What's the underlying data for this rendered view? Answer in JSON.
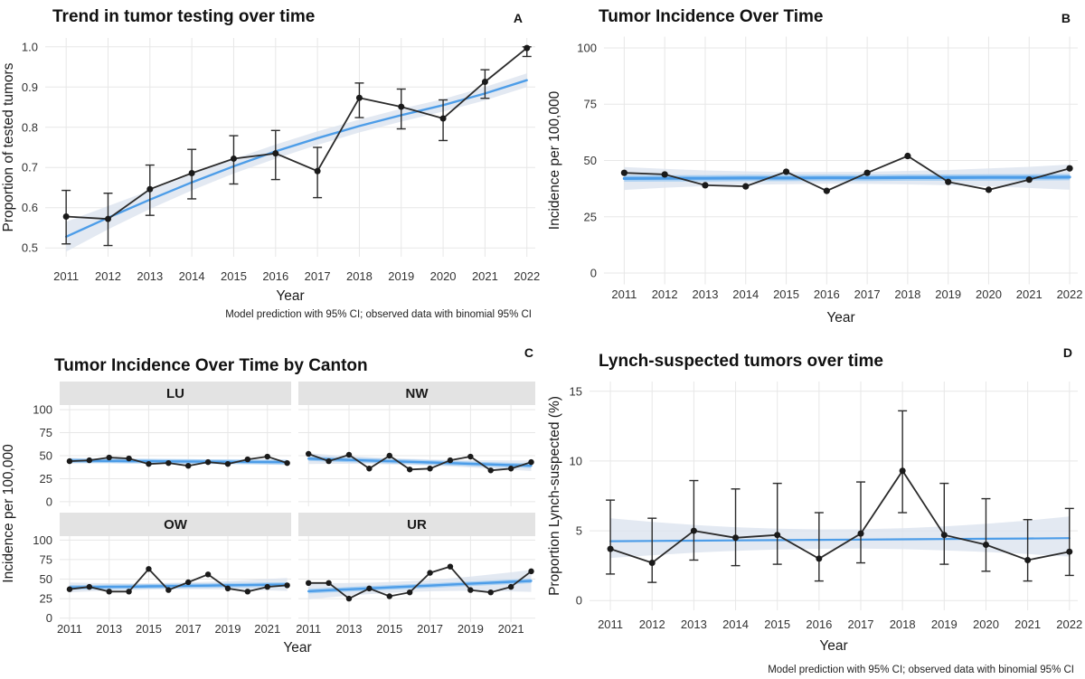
{
  "figure": {
    "colors": {
      "model_line": "#4D9DE8",
      "model_underlay": "#A9CFF2",
      "ribbon": "#DCE4EF",
      "observed": "#2B2B2B",
      "point": "#1A1A1A",
      "grid": "#E7E7E7",
      "strip_bg": "#E3E3E3",
      "text": "#1A1A1A",
      "tick_text": "#333333"
    }
  },
  "chart_data": [
    {
      "id": "A",
      "tag": "A",
      "type": "line",
      "title": "Trend in tumor testing over time",
      "xlabel": "Year",
      "ylabel": "Proportion of tested tumors",
      "caption": "Model prediction with 95% CI; observed data with binomial 95% CI",
      "legend_position": "none",
      "grid": true,
      "xlim": [
        2010.5,
        2022.2
      ],
      "ylim": [
        0.478,
        1.022
      ],
      "x": [
        2011,
        2012,
        2013,
        2014,
        2015,
        2016,
        2017,
        2018,
        2019,
        2020,
        2021,
        2022
      ],
      "x_ticks": [
        2011,
        2012,
        2013,
        2014,
        2015,
        2016,
        2017,
        2018,
        2019,
        2020,
        2021,
        2022
      ],
      "x_tick_labels": [
        "2011",
        "2012",
        "2013",
        "2014",
        "2015",
        "2016",
        "2017",
        "2018",
        "2019",
        "2020",
        "2021",
        "2022"
      ],
      "y_ticks": [
        0.5,
        0.6,
        0.7,
        0.8,
        0.9,
        1.0
      ],
      "y_tick_labels": [
        "0.5",
        "0.6",
        "0.7",
        "0.8",
        "0.9",
        "1.0"
      ],
      "observed": [
        0.578,
        0.572,
        0.646,
        0.686,
        0.722,
        0.735,
        0.691,
        0.873,
        0.851,
        0.822,
        0.913,
        0.997
      ],
      "obs_ci_low": [
        0.51,
        0.506,
        0.581,
        0.622,
        0.659,
        0.67,
        0.625,
        0.824,
        0.796,
        0.767,
        0.872,
        0.976
      ],
      "obs_ci_high": [
        0.643,
        0.636,
        0.706,
        0.745,
        0.779,
        0.792,
        0.75,
        0.91,
        0.895,
        0.868,
        0.943,
        1.0
      ],
      "model": [
        0.528,
        0.575,
        0.62,
        0.663,
        0.703,
        0.74,
        0.773,
        0.803,
        0.83,
        0.855,
        0.884,
        0.917
      ],
      "model_ci_low": [
        0.491,
        0.546,
        0.597,
        0.643,
        0.685,
        0.722,
        0.756,
        0.787,
        0.814,
        0.839,
        0.867,
        0.9
      ],
      "model_ci_high": [
        0.565,
        0.604,
        0.643,
        0.683,
        0.721,
        0.757,
        0.79,
        0.819,
        0.846,
        0.87,
        0.9,
        0.934
      ]
    },
    {
      "id": "B",
      "tag": "B",
      "type": "line",
      "title": "Tumor Incidence Over Time",
      "xlabel": "Year",
      "ylabel": "Incidence per 100,000",
      "caption": "",
      "legend_position": "none",
      "grid": true,
      "xlim": [
        2010.5,
        2022.2
      ],
      "ylim": [
        -5,
        105
      ],
      "x": [
        2011,
        2012,
        2013,
        2014,
        2015,
        2016,
        2017,
        2018,
        2019,
        2020,
        2021,
        2022
      ],
      "x_ticks": [
        2011,
        2012,
        2013,
        2014,
        2015,
        2016,
        2017,
        2018,
        2019,
        2020,
        2021,
        2022
      ],
      "x_tick_labels": [
        "2011",
        "2012",
        "2013",
        "2014",
        "2015",
        "2016",
        "2017",
        "2018",
        "2019",
        "2020",
        "2021",
        "2022"
      ],
      "y_ticks": [
        0,
        25,
        50,
        75,
        100
      ],
      "y_tick_labels": [
        "0",
        "25",
        "50",
        "75",
        "100"
      ],
      "observed": [
        44.5,
        43.8,
        39.0,
        38.5,
        45.0,
        36.5,
        44.5,
        52.0,
        40.5,
        37.0,
        41.5,
        46.5
      ],
      "model": [
        42.0,
        42.1,
        42.1,
        42.2,
        42.2,
        42.3,
        42.3,
        42.4,
        42.4,
        42.5,
        42.5,
        42.6
      ],
      "model_ci_low": [
        36.9,
        37.9,
        38.6,
        39.2,
        39.5,
        39.7,
        39.6,
        39.4,
        39.0,
        38.5,
        37.8,
        37.0
      ],
      "model_ci_high": [
        47.1,
        46.3,
        45.6,
        45.2,
        44.9,
        44.9,
        45.0,
        45.4,
        45.8,
        46.5,
        47.2,
        48.2
      ]
    },
    {
      "id": "C",
      "tag": "C",
      "type": "facet-line",
      "title": "Tumor Incidence Over Time by Canton",
      "xlabel": "Year",
      "ylabel": "Incidence per 100,000",
      "caption": "",
      "legend_position": "none",
      "grid": true,
      "xlim": [
        2010.5,
        2022.2
      ],
      "ylim": [
        -5,
        105
      ],
      "x": [
        2011,
        2012,
        2013,
        2014,
        2015,
        2016,
        2017,
        2018,
        2019,
        2020,
        2021,
        2022
      ],
      "x_ticks": [
        2011,
        2013,
        2015,
        2017,
        2019,
        2021
      ],
      "x_tick_labels": [
        "2011",
        "2013",
        "2015",
        "2017",
        "2019",
        "2021"
      ],
      "y_ticks": [
        0,
        25,
        50,
        75,
        100
      ],
      "y_tick_labels": [
        "0",
        "25",
        "50",
        "75",
        "100"
      ],
      "facets": [
        {
          "label": "LU",
          "observed": [
            44,
            45,
            48,
            47,
            41,
            42,
            39,
            43,
            41,
            46,
            49,
            42
          ],
          "model": [
            44.6,
            44.4,
            44.3,
            44.1,
            44.0,
            43.8,
            43.7,
            43.5,
            43.4,
            43.2,
            43.1,
            42.9
          ],
          "model_ci_low": [
            41.5,
            41.8,
            42.0,
            42.1,
            42.1,
            42.0,
            41.8,
            41.5,
            41.2,
            40.8,
            40.3,
            39.8
          ],
          "model_ci_high": [
            47.7,
            47.0,
            46.5,
            46.1,
            45.9,
            45.7,
            45.6,
            45.5,
            45.6,
            45.7,
            45.9,
            46.1
          ]
        },
        {
          "label": "NW",
          "observed": [
            52,
            44,
            51,
            36,
            50,
            35,
            36,
            45,
            49,
            34,
            36,
            43
          ],
          "model": [
            46.8,
            46.1,
            45.4,
            44.7,
            44.0,
            43.3,
            42.6,
            41.9,
            41.2,
            40.5,
            39.8,
            39.1
          ],
          "model_ci_low": [
            41.0,
            41.2,
            41.2,
            41.0,
            40.6,
            40.0,
            39.2,
            38.3,
            37.2,
            36.0,
            34.7,
            33.4
          ],
          "model_ci_high": [
            52.6,
            51.0,
            49.6,
            48.4,
            47.4,
            46.6,
            46.0,
            45.5,
            45.2,
            45.0,
            44.9,
            44.8
          ]
        },
        {
          "label": "OW",
          "observed": [
            37,
            40,
            34,
            34,
            63,
            36,
            46,
            56,
            38,
            34,
            40,
            42
          ],
          "model": [
            39.3,
            39.6,
            40.0,
            40.3,
            40.7,
            41.0,
            41.4,
            41.7,
            42.1,
            42.4,
            42.8,
            43.1
          ],
          "model_ci_low": [
            33.0,
            34.2,
            35.2,
            36.0,
            36.6,
            36.9,
            37.0,
            36.9,
            36.6,
            36.1,
            35.5,
            34.8
          ],
          "model_ci_high": [
            45.6,
            45.0,
            44.8,
            44.6,
            44.8,
            45.1,
            45.8,
            46.5,
            47.6,
            48.7,
            50.1,
            51.4
          ]
        },
        {
          "label": "UR",
          "observed": [
            45,
            45,
            25,
            38,
            28,
            33,
            58,
            66,
            36,
            33,
            40,
            60
          ],
          "model": [
            34.5,
            35.7,
            36.9,
            38.1,
            39.3,
            40.5,
            41.7,
            42.9,
            44.1,
            45.3,
            46.5,
            47.7
          ],
          "model_ci_low": [
            24.0,
            26.5,
            28.8,
            30.8,
            32.4,
            33.6,
            34.4,
            34.8,
            34.9,
            34.7,
            34.3,
            33.7
          ],
          "model_ci_high": [
            45.0,
            44.9,
            45.0,
            45.4,
            46.2,
            47.4,
            49.0,
            51.0,
            53.3,
            55.9,
            58.7,
            61.7
          ]
        }
      ]
    },
    {
      "id": "D",
      "tag": "D",
      "type": "line",
      "title": "Lynch-suspected tumors over time",
      "xlabel": "Year",
      "ylabel": "Proportion Lynch-suspected (%)",
      "caption": "Model prediction with 95% CI; observed data with binomial 95% CI",
      "legend_position": "none",
      "grid": true,
      "xlim": [
        2010.5,
        2022.2
      ],
      "ylim": [
        -0.7,
        15.7
      ],
      "x": [
        2011,
        2012,
        2013,
        2014,
        2015,
        2016,
        2017,
        2018,
        2019,
        2020,
        2021,
        2022
      ],
      "x_ticks": [
        2011,
        2012,
        2013,
        2014,
        2015,
        2016,
        2017,
        2018,
        2019,
        2020,
        2021,
        2022
      ],
      "x_tick_labels": [
        "2011",
        "2012",
        "2013",
        "2014",
        "2015",
        "2016",
        "2017",
        "2018",
        "2019",
        "2020",
        "2021",
        "2022"
      ],
      "y_ticks": [
        0,
        5,
        10,
        15
      ],
      "y_tick_labels": [
        "0",
        "5",
        "10",
        "15"
      ],
      "observed": [
        3.7,
        2.7,
        5.0,
        4.5,
        4.7,
        3.0,
        4.8,
        9.3,
        4.7,
        4.0,
        2.9,
        3.5
      ],
      "obs_ci_low": [
        1.9,
        1.3,
        2.9,
        2.5,
        2.6,
        1.4,
        2.7,
        6.3,
        2.6,
        2.1,
        1.4,
        1.8
      ],
      "obs_ci_high": [
        7.2,
        5.9,
        8.6,
        8.0,
        8.4,
        6.3,
        8.5,
        13.6,
        8.4,
        7.3,
        5.8,
        6.6
      ],
      "model": [
        4.25,
        4.27,
        4.29,
        4.31,
        4.33,
        4.35,
        4.37,
        4.39,
        4.41,
        4.43,
        4.45,
        4.47
      ],
      "model_ci_low": [
        3.05,
        3.25,
        3.43,
        3.56,
        3.66,
        3.71,
        3.72,
        3.68,
        3.6,
        3.48,
        3.33,
        3.15
      ],
      "model_ci_high": [
        5.9,
        5.63,
        5.42,
        5.26,
        5.15,
        5.1,
        5.11,
        5.18,
        5.31,
        5.5,
        5.74,
        6.03
      ]
    }
  ]
}
